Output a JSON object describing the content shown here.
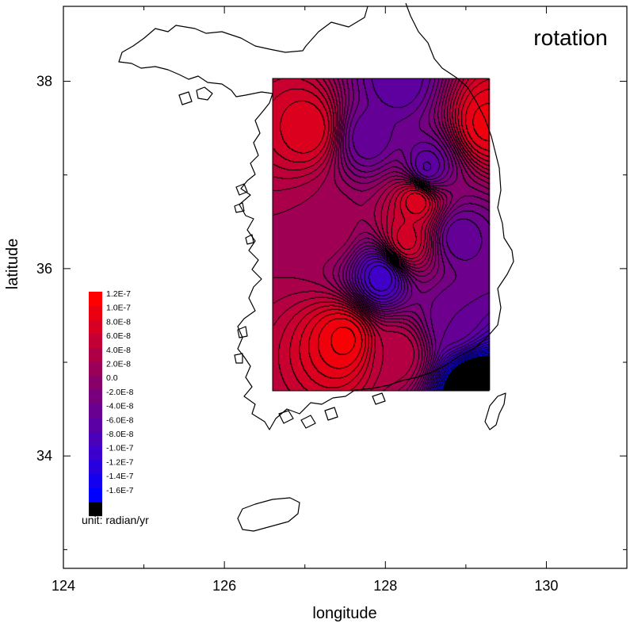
{
  "chart_data": {
    "type": "heatmap",
    "title": "rotation",
    "xlabel": "longitude",
    "ylabel": "latitude",
    "xlim": [
      124,
      131
    ],
    "ylim": [
      32.8,
      38.8
    ],
    "xticks": [
      124,
      126,
      128,
      130
    ],
    "yticks": [
      34,
      36,
      38
    ],
    "grid": false,
    "data_extent": {
      "lon": [
        126.6,
        129.3
      ],
      "lat": [
        34.7,
        38.03
      ]
    },
    "colorbar": {
      "levels": [
        "1.2E-7",
        "1.0E-7",
        "8.0E-8",
        "6.0E-8",
        "4.0E-8",
        "2.0E-8",
        "0.0",
        "-2.0E-8",
        "-4.0E-8",
        "-6.0E-8",
        "-8.0E-8",
        "-1.0E-7",
        "-1.2E-7",
        "-1.4E-7",
        "-1.6E-7"
      ],
      "placement": "left",
      "min_color": "#000000",
      "max_color": "#ff0000",
      "zero_color": "#880066",
      "neg_color": "#0000ff"
    },
    "unit_label": "unit: radian/yr",
    "anomalies": [
      {
        "lon": 127.05,
        "lat": 37.5,
        "value": 9e-08
      },
      {
        "lon": 127.3,
        "lat": 36.45,
        "value": 3e-08
      },
      {
        "lon": 127.5,
        "lat": 35.25,
        "value": 1.15e-07
      },
      {
        "lon": 128.15,
        "lat": 35.1,
        "value": 5e-08
      },
      {
        "lon": 128.25,
        "lat": 36.3,
        "value": 8e-08
      },
      {
        "lon": 128.4,
        "lat": 36.75,
        "value": 1e-07
      },
      {
        "lon": 129.25,
        "lat": 37.55,
        "value": 1.05e-07
      },
      {
        "lon": 127.95,
        "lat": 35.92,
        "value": -1.05e-07
      },
      {
        "lon": 128.5,
        "lat": 37.05,
        "value": -7e-08
      },
      {
        "lon": 127.78,
        "lat": 37.4,
        "value": -5e-08
      },
      {
        "lon": 128.9,
        "lat": 36.35,
        "value": -5e-08
      },
      {
        "lon": 128.15,
        "lat": 38.02,
        "value": -6e-08
      },
      {
        "lon": 128.85,
        "lat": 35.45,
        "value": -4e-08
      },
      {
        "lon": 129.1,
        "lat": 34.7,
        "value": -2.3e-07
      }
    ]
  },
  "colors": {
    "axis": "#000000",
    "coast": "#000000",
    "background": "#ffffff"
  }
}
